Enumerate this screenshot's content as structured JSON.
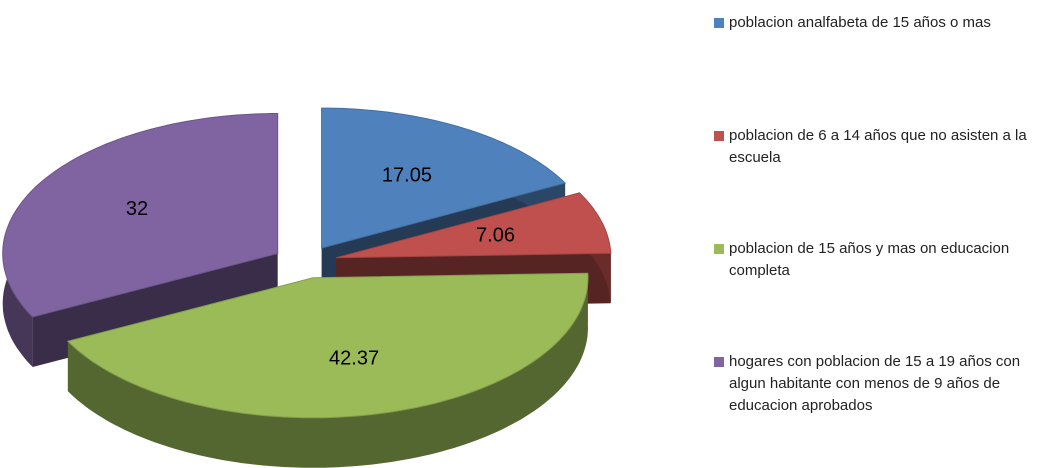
{
  "chart_data": {
    "type": "pie",
    "categories": [
      "poblacion analfabeta de 15 años o mas",
      "poblacion de 6 a 14 años que no asisten a la escuela",
      "poblacion de 15 años y mas on educacion completa",
      "hogares con poblacion de 15 a 19 años con algun habitante con menos de 9 años de educacion aprobados"
    ],
    "values": [
      17.05,
      7.06,
      42.37,
      32
    ],
    "colors": [
      "#4f81bd",
      "#c0504d",
      "#9bbb59",
      "#8064a2"
    ],
    "legend": "right"
  }
}
